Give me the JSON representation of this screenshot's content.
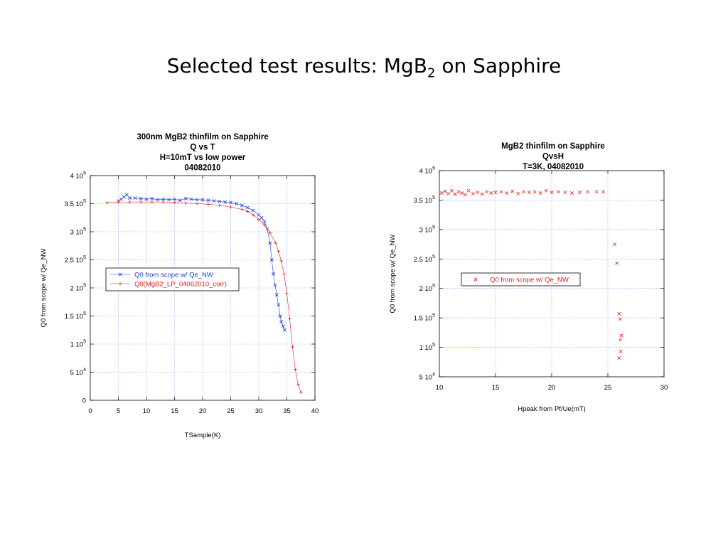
{
  "slide": {
    "title": "Selected test results: MgB",
    "title_sub": "2",
    "title_tail": " on Sapphire"
  },
  "chart_data": [
    {
      "type": "scatter",
      "title_lines": [
        "300nm MgB2 thinfilm on Sapphire",
        "Q vs T",
        "H=10mT vs low power",
        "04082010"
      ],
      "xlabel": "TSample(K)",
      "ylabel": "Q0 from scope w/ Qe_NW",
      "xlim": [
        0,
        40
      ],
      "ylim": [
        0,
        400000
      ],
      "xticks": [
        0,
        5,
        10,
        15,
        20,
        25,
        30,
        35,
        40
      ],
      "yticks": [
        {
          "value": 0,
          "mant": "0",
          "exp": ""
        },
        {
          "value": 50000,
          "mant": "5 10",
          "exp": "4"
        },
        {
          "value": 100000,
          "mant": "1 10",
          "exp": "5"
        },
        {
          "value": 150000,
          "mant": "1.5 10",
          "exp": "5"
        },
        {
          "value": 200000,
          "mant": "2 10",
          "exp": "5"
        },
        {
          "value": 250000,
          "mant": "2.5 10",
          "exp": "5"
        },
        {
          "value": 300000,
          "mant": "3 10",
          "exp": "5"
        },
        {
          "value": 350000,
          "mant": "3.5 10",
          "exp": "5"
        },
        {
          "value": 400000,
          "mant": "4 10",
          "exp": "5"
        }
      ],
      "grid": true,
      "legend_position": "center-left",
      "series": [
        {
          "name": "Q0 from scope w/ Qe_NW",
          "color": "#1f3fd6",
          "marker": "x",
          "x": [
            5.0,
            5.5,
            6.0,
            6.5,
            7.0,
            8.0,
            9.0,
            10.0,
            11.0,
            12.0,
            13.0,
            14.0,
            15.0,
            16.0,
            17.0,
            18.0,
            19.0,
            20.0,
            21.0,
            22.0,
            23.0,
            24.0,
            25.0,
            26.0,
            27.0,
            28.0,
            29.0,
            30.0,
            30.5,
            31.0,
            31.5,
            32.0,
            32.3,
            32.6,
            32.9,
            33.2,
            33.5,
            33.8,
            34.0,
            34.3,
            34.6
          ],
          "y": [
            355000,
            358000,
            362000,
            366000,
            360000,
            360000,
            359000,
            358000,
            359000,
            357000,
            358000,
            357000,
            358000,
            356000,
            359000,
            358000,
            357000,
            357000,
            356000,
            355000,
            354000,
            353000,
            352000,
            350000,
            347000,
            343000,
            338000,
            330000,
            325000,
            318000,
            305000,
            280000,
            250000,
            225000,
            205000,
            188000,
            170000,
            150000,
            140000,
            132000,
            125000
          ]
        },
        {
          "name": "Q0(MgB2_LP_04062010_corr)",
          "color": "#e02020",
          "marker": "+",
          "x": [
            3.0,
            5.0,
            7.0,
            9.0,
            11.0,
            13.0,
            15.0,
            17.0,
            19.0,
            21.0,
            23.0,
            25.0,
            27.0,
            28.0,
            29.0,
            30.0,
            31.0,
            32.0,
            33.0,
            33.5,
            34.0,
            34.5,
            35.0,
            35.5,
            36.0,
            36.5,
            37.0,
            37.5
          ],
          "y": [
            352000,
            353000,
            353000,
            353000,
            353000,
            353000,
            352000,
            351000,
            350000,
            349000,
            347000,
            344000,
            340000,
            336000,
            330000,
            322000,
            312000,
            298000,
            280000,
            265000,
            248000,
            225000,
            190000,
            145000,
            95000,
            55000,
            28000,
            14000
          ]
        }
      ]
    },
    {
      "type": "scatter",
      "title_lines": [
        "MgB2 thinfilm on Sapphire",
        "QvsH",
        "T=3K, 04082010"
      ],
      "xlabel": "Hpeak from Pf/Ue(mT)",
      "ylabel": "Q0 from scope w/ Qe_NW",
      "xlim": [
        10,
        30
      ],
      "ylim": [
        50000,
        400000
      ],
      "xticks": [
        10,
        15,
        20,
        25,
        30
      ],
      "yticks": [
        {
          "value": 50000,
          "mant": "5 10",
          "exp": "4"
        },
        {
          "value": 100000,
          "mant": "1 10",
          "exp": "5"
        },
        {
          "value": 150000,
          "mant": "1.5 10",
          "exp": "5"
        },
        {
          "value": 200000,
          "mant": "2 10",
          "exp": "5"
        },
        {
          "value": 250000,
          "mant": "2.5 10",
          "exp": "5"
        },
        {
          "value": 300000,
          "mant": "3 10",
          "exp": "5"
        },
        {
          "value": 350000,
          "mant": "3.5 10",
          "exp": "5"
        },
        {
          "value": 400000,
          "mant": "4 10",
          "exp": "5"
        }
      ],
      "grid": true,
      "legend_position": "center-left",
      "series": [
        {
          "name": "Q0 from scope w/ Qe_NW",
          "color": "#e02020",
          "marker": "x",
          "x": [
            10.2,
            10.5,
            10.8,
            11.1,
            11.4,
            11.7,
            12.0,
            12.3,
            12.6,
            13.0,
            13.4,
            13.8,
            14.2,
            14.6,
            15.0,
            15.5,
            16.0,
            16.5,
            17.0,
            17.5,
            18.0,
            18.5,
            19.0,
            19.5,
            20.0,
            20.6,
            21.2,
            21.8,
            22.5,
            23.2,
            24.0,
            24.6,
            25.6,
            25.8,
            26.0,
            26.1,
            26.2,
            26.1,
            26.15,
            26.0
          ],
          "y": [
            362000,
            365000,
            361000,
            366000,
            360000,
            364000,
            362000,
            359000,
            366000,
            361000,
            363000,
            360000,
            364000,
            362000,
            363000,
            364000,
            362000,
            365000,
            361000,
            364000,
            363000,
            364000,
            362000,
            366000,
            363000,
            364000,
            363000,
            362000,
            363000,
            364000,
            364000,
            364000,
            275000,
            243000,
            157000,
            148000,
            120000,
            113000,
            93000,
            82000
          ]
        }
      ]
    }
  ]
}
